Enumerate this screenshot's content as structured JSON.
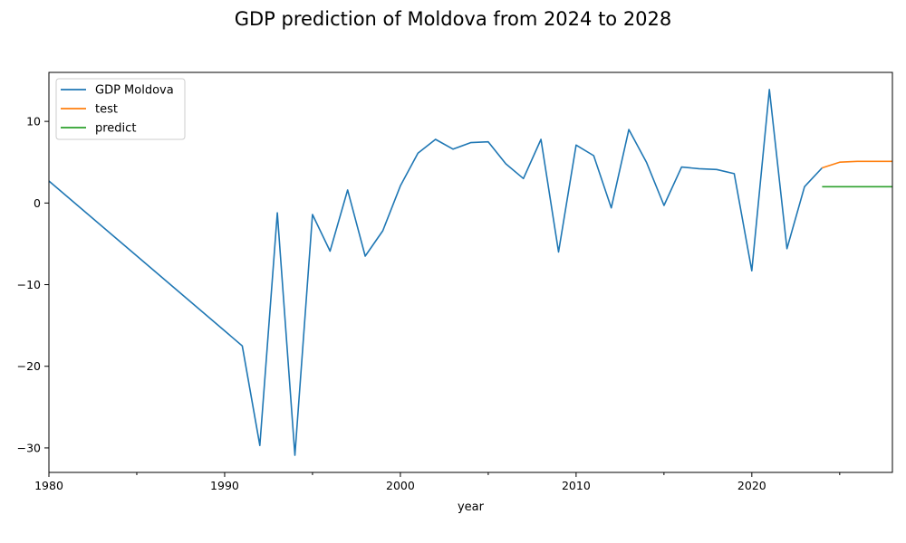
{
  "chart_data": {
    "type": "line",
    "title": "GDP prediction of Moldova from 2024 to 2028",
    "xlabel": "year",
    "ylabel": "",
    "xlim": [
      1980,
      2028
    ],
    "ylim": [
      -33,
      16
    ],
    "x_ticks": [
      1980,
      1990,
      2000,
      2010,
      2020
    ],
    "x_minor_ticks": [
      1985,
      1995,
      2005,
      2015,
      2025
    ],
    "y_ticks": [
      10,
      0,
      -10,
      -20,
      -30
    ],
    "grid": false,
    "legend_position": "upper-left",
    "series": [
      {
        "name": "GDP Moldova",
        "color": "#1f77b4",
        "points": [
          [
            1980,
            2.7
          ],
          [
            1991,
            -17.5
          ],
          [
            1992,
            -29.7
          ],
          [
            1993,
            -1.2
          ],
          [
            1994,
            -30.9
          ],
          [
            1995,
            -1.4
          ],
          [
            1996,
            -5.9
          ],
          [
            1997,
            1.6
          ],
          [
            1998,
            -6.5
          ],
          [
            1999,
            -3.4
          ],
          [
            2000,
            2.1
          ],
          [
            2001,
            6.1
          ],
          [
            2002,
            7.8
          ],
          [
            2003,
            6.6
          ],
          [
            2004,
            7.4
          ],
          [
            2005,
            7.5
          ],
          [
            2006,
            4.8
          ],
          [
            2007,
            3.0
          ],
          [
            2008,
            7.8
          ],
          [
            2009,
            -6.0
          ],
          [
            2010,
            7.1
          ],
          [
            2011,
            5.8
          ],
          [
            2012,
            -0.6
          ],
          [
            2013,
            9.0
          ],
          [
            2014,
            5.0
          ],
          [
            2015,
            -0.3
          ],
          [
            2016,
            4.4
          ],
          [
            2017,
            4.2
          ],
          [
            2018,
            4.1
          ],
          [
            2019,
            3.6
          ],
          [
            2020,
            -8.3
          ],
          [
            2021,
            13.9
          ],
          [
            2022,
            -5.6
          ],
          [
            2023,
            2.0
          ],
          [
            2024,
            4.3
          ]
        ]
      },
      {
        "name": "test",
        "color": "#ff7f0e",
        "points": [
          [
            2024,
            4.3
          ],
          [
            2025,
            5.0
          ],
          [
            2026,
            5.1
          ],
          [
            2027,
            5.1
          ],
          [
            2028,
            5.1
          ]
        ]
      },
      {
        "name": "predict",
        "color": "#2ca02c",
        "points": [
          [
            2024,
            2.0
          ],
          [
            2025,
            2.0
          ],
          [
            2026,
            2.0
          ],
          [
            2027,
            2.0
          ],
          [
            2028,
            2.0
          ]
        ]
      }
    ]
  }
}
